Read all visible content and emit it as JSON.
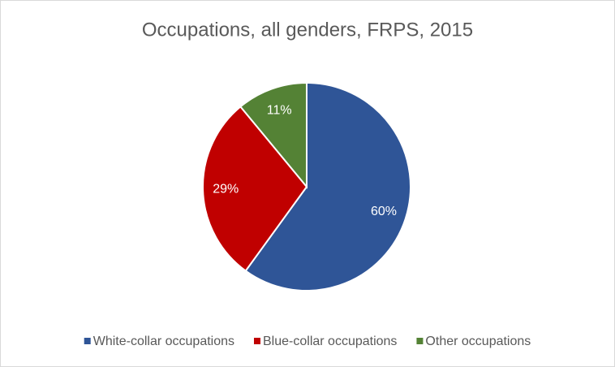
{
  "chart_data": {
    "type": "pie",
    "title": "Occupations, all genders, FRPS, 2015",
    "categories": [
      "White-collar occupations",
      "Blue-collar occupations",
      "Other occupations"
    ],
    "values": [
      60,
      29,
      11
    ],
    "value_labels": [
      "60%",
      "29%",
      "11%"
    ],
    "colors": [
      "#2f5597",
      "#c00000",
      "#548235"
    ],
    "legend": "bottom"
  }
}
